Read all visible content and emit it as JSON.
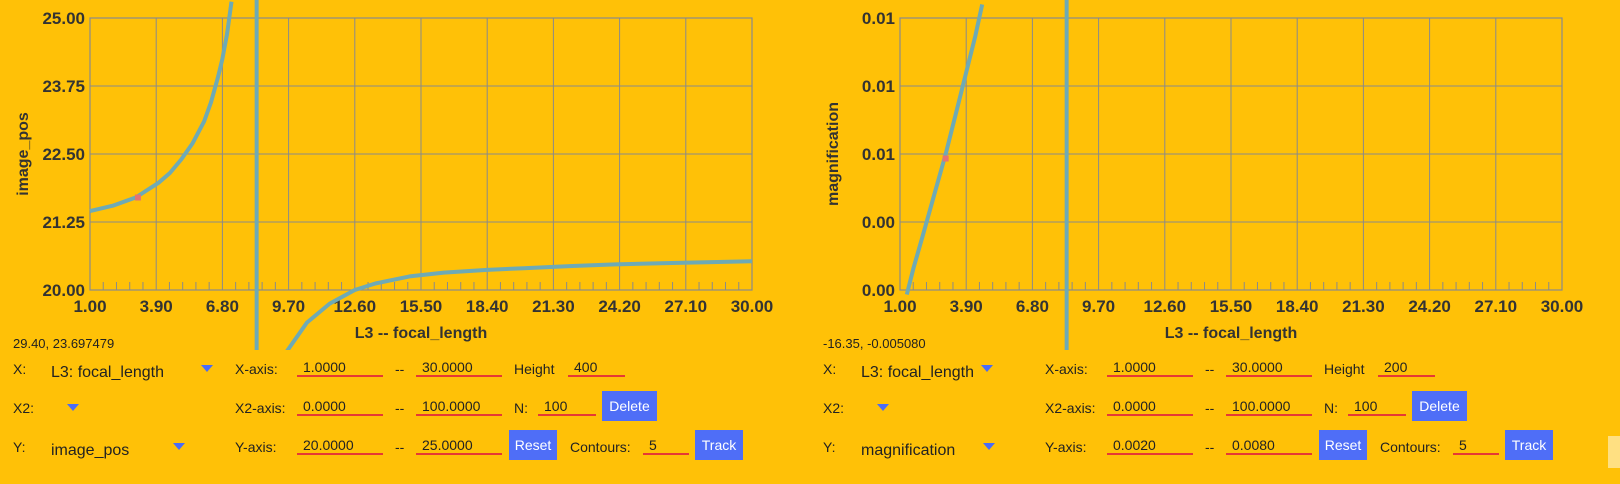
{
  "panels": [
    {
      "coord_readout": "29.40, 23.697479",
      "controls": {
        "x_label": "X:",
        "x_value": "L3: focal_length",
        "x2_label": "X2:",
        "x2_value": "",
        "y_label": "Y:",
        "y_value": "image_pos",
        "xaxis_label": "X-axis:",
        "xaxis_min": "1.0000",
        "xaxis_max": "30.0000",
        "x2axis_label": "X2-axis:",
        "x2axis_min": "0.0000",
        "x2axis_max": "100.0000",
        "yaxis_label": "Y-axis:",
        "yaxis_min": "20.0000",
        "yaxis_max": "25.0000",
        "dash": "--",
        "height_label": "Height",
        "height_value": "400",
        "n_label": "N:",
        "n_value": "100",
        "contours_label": "Contours:",
        "contours_value": "5",
        "delete_label": "Delete",
        "reset_label": "Reset",
        "track_label": "Track"
      },
      "chart_data": {
        "type": "line",
        "xlabel": "L3 -- focal_length",
        "ylabel": "image_pos",
        "xlim": [
          1.0,
          30.0
        ],
        "ylim": [
          20.0,
          25.0
        ],
        "x_ticks": [
          "1.00",
          "3.90",
          "6.80",
          "9.70",
          "12.60",
          "15.50",
          "18.40",
          "21.30",
          "24.20",
          "27.10",
          "30.00"
        ],
        "y_ticks": [
          "20.00",
          "21.25",
          "22.50",
          "23.75",
          "25.00"
        ],
        "grid": true,
        "asymptote_x": 8.3,
        "marker": {
          "x": 3.1,
          "y": 21.7
        },
        "series": [
          {
            "color": "#6EAAB5",
            "x": [
              1.0,
              2.0,
              3.0,
              4.0,
              4.5,
              5.0,
              5.5,
              6.0,
              6.3,
              6.6,
              6.8,
              7.0,
              7.2
            ],
            "y": [
              21.45,
              21.55,
              21.7,
              21.97,
              22.15,
              22.4,
              22.7,
              23.1,
              23.45,
              23.9,
              24.25,
              24.7,
              25.3
            ]
          },
          {
            "color": "#6EAAB5",
            "x": [
              9.5,
              10.5,
              11.5,
              12.6,
              13.5,
              15.0,
              16.5,
              18.4,
              20.0,
              22.0,
              24.0,
              26.0,
              28.0,
              30.0
            ],
            "y": [
              18.8,
              19.4,
              19.75,
              20.0,
              20.12,
              20.25,
              20.32,
              20.37,
              20.4,
              20.44,
              20.47,
              20.49,
              20.51,
              20.53
            ]
          }
        ]
      }
    },
    {
      "coord_readout": "-16.35, -0.005080",
      "controls": {
        "x_label": "X:",
        "x_value": "L3: focal_length",
        "x2_label": "X2:",
        "x2_value": "",
        "y_label": "Y:",
        "y_value": "magnification",
        "xaxis_label": "X-axis:",
        "xaxis_min": "1.0000",
        "xaxis_max": "30.0000",
        "x2axis_label": "X2-axis:",
        "x2axis_min": "0.0000",
        "x2axis_max": "100.0000",
        "yaxis_label": "Y-axis:",
        "yaxis_min": "0.0020",
        "yaxis_max": "0.0080",
        "dash": "--",
        "height_label": "Height",
        "height_value": "200",
        "n_label": "N:",
        "n_value": "100",
        "contours_label": "Contours:",
        "contours_value": "5",
        "delete_label": "Delete",
        "reset_label": "Reset",
        "track_label": "Track"
      },
      "chart_data": {
        "type": "line",
        "xlabel": "L3 -- focal_length",
        "ylabel": "magnification",
        "xlim": [
          1.0,
          30.0
        ],
        "ylim": [
          0.002,
          0.008
        ],
        "x_ticks": [
          "1.00",
          "3.90",
          "6.80",
          "9.70",
          "12.60",
          "15.50",
          "18.40",
          "21.30",
          "24.20",
          "27.10",
          "30.00"
        ],
        "y_ticks": [
          "0.00",
          "0.00",
          "0.01",
          "0.01",
          "0.01"
        ],
        "grid": true,
        "asymptote_x": 8.3,
        "marker": {
          "x": 3.0,
          "y": 0.0049
        },
        "series": [
          {
            "color": "#6EAAB5",
            "x": [
              1.3,
              1.6,
              2.0,
              2.5,
              3.0,
              3.5,
              3.9,
              4.3,
              4.6
            ],
            "y": [
              0.0019,
              0.0025,
              0.0032,
              0.0041,
              0.005,
              0.006,
              0.0068,
              0.0076,
              0.0083
            ]
          }
        ]
      }
    }
  ]
}
